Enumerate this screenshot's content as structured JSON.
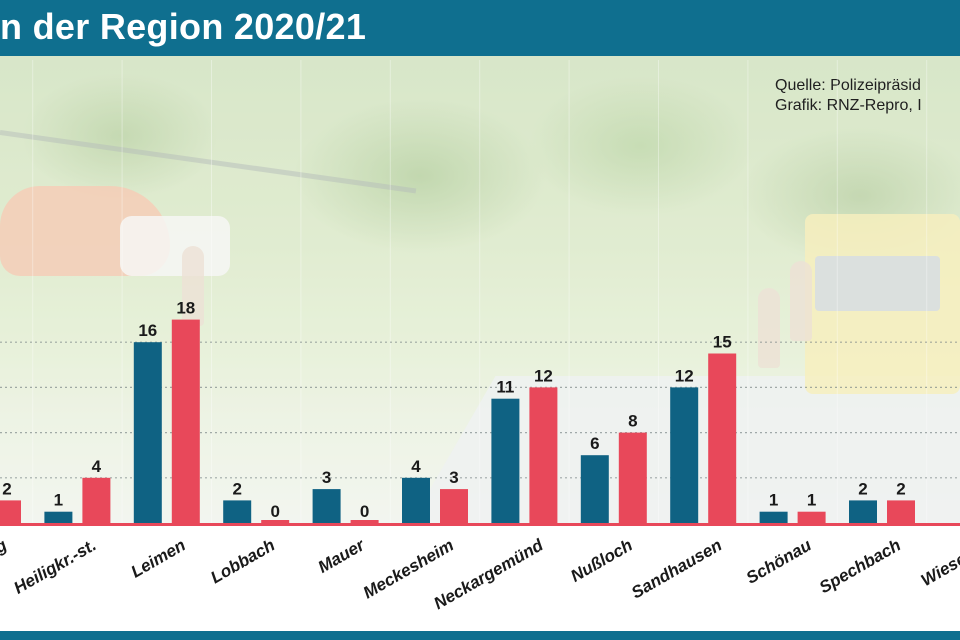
{
  "header": {
    "title": "n der Region 2020/21"
  },
  "source": {
    "line1": "Quelle: Polizeipräsid",
    "line2": "Grafik: RNZ-Repro, I"
  },
  "colors": {
    "header": "#0f6f8f",
    "series_2020": "#0f6283",
    "series_2021": "#e8485a",
    "baseline": "#e8485a"
  },
  "chart_data": {
    "type": "bar",
    "categories": [
      "…g",
      "Heiligkr.-st.",
      "Leimen",
      "Lobbach",
      "Mauer",
      "Meckesheim",
      "Neckargemünd",
      "Nußloch",
      "Sandhausen",
      "Schönau",
      "Spechbach",
      "Wiesen…"
    ],
    "series": [
      {
        "values": [
          null,
          1,
          16,
          2,
          3,
          4,
          11,
          6,
          12,
          1,
          2,
          null
        ],
        "color": "#0f6283"
      },
      {
        "values": [
          2,
          4,
          18,
          0,
          0,
          3,
          12,
          8,
          15,
          1,
          2,
          null
        ],
        "color": "#e8485a"
      }
    ],
    "ylim": [
      0,
      20
    ],
    "grid": true
  }
}
